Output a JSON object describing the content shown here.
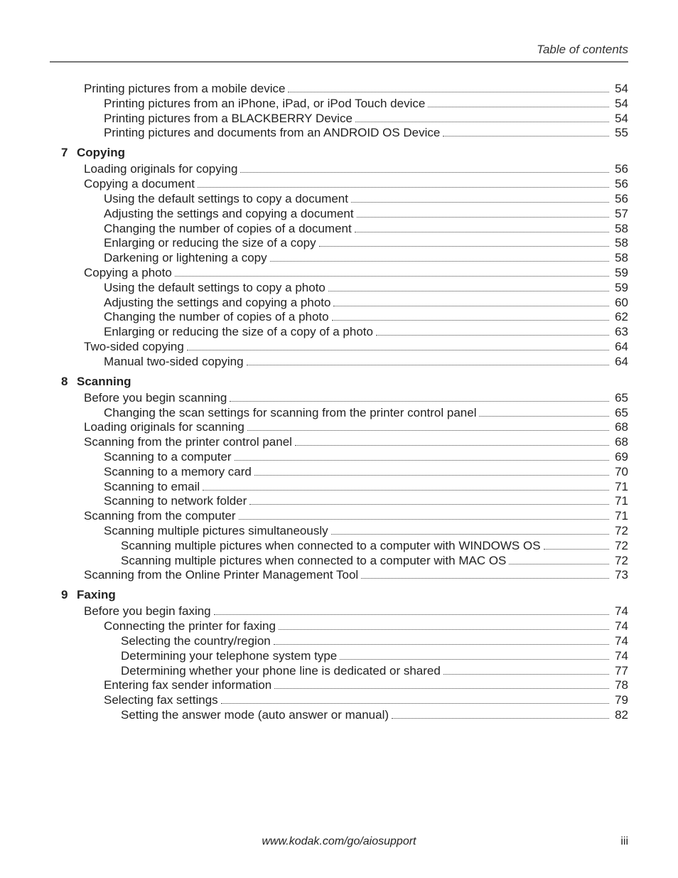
{
  "header": {
    "title": "Table of contents"
  },
  "entries": [
    {
      "indent": 0,
      "title": "Printing pictures from a mobile device",
      "page": "54"
    },
    {
      "indent": 1,
      "title": "Printing pictures from an iPhone, iPad, or iPod Touch device",
      "page": "54"
    },
    {
      "indent": 1,
      "title": "Printing pictures from a BLACKBERRY Device",
      "page": "54"
    },
    {
      "indent": 1,
      "title": "Printing pictures and documents from an ANDROID OS Device",
      "page": "55"
    },
    {
      "heading": true,
      "num": "7",
      "title": "Copying"
    },
    {
      "indent": 0,
      "title": "Loading originals for copying",
      "page": "56"
    },
    {
      "indent": 0,
      "title": "Copying a document",
      "page": "56"
    },
    {
      "indent": 1,
      "title": "Using the default settings to copy a document",
      "page": "56"
    },
    {
      "indent": 1,
      "title": "Adjusting the settings and copying a document",
      "page": "57"
    },
    {
      "indent": 1,
      "title": "Changing the number of copies of a document",
      "page": "58"
    },
    {
      "indent": 1,
      "title": "Enlarging or reducing the size of a copy",
      "page": "58"
    },
    {
      "indent": 1,
      "title": "Darkening or lightening a copy",
      "page": "58"
    },
    {
      "indent": 0,
      "title": "Copying a photo",
      "page": "59"
    },
    {
      "indent": 1,
      "title": "Using the default settings to copy a photo",
      "page": "59"
    },
    {
      "indent": 1,
      "title": "Adjusting the settings and copying a photo",
      "page": "60"
    },
    {
      "indent": 1,
      "title": "Changing the number of copies of a photo",
      "page": "62"
    },
    {
      "indent": 1,
      "title": "Enlarging or reducing the size of a copy of a photo",
      "page": "63"
    },
    {
      "indent": 0,
      "title": "Two-sided copying",
      "page": "64"
    },
    {
      "indent": 1,
      "title": "Manual two-sided copying",
      "page": "64"
    },
    {
      "heading": true,
      "num": "8",
      "title": "Scanning"
    },
    {
      "indent": 0,
      "title": "Before you begin scanning",
      "page": "65"
    },
    {
      "indent": 1,
      "title": "Changing the scan settings for scanning from the printer control panel",
      "page": "65"
    },
    {
      "indent": 0,
      "title": "Loading originals for scanning",
      "page": "68"
    },
    {
      "indent": 0,
      "title": "Scanning from the printer control panel",
      "page": "68"
    },
    {
      "indent": 1,
      "title": "Scanning to a computer",
      "page": "69"
    },
    {
      "indent": 1,
      "title": "Scanning to a memory card",
      "page": "70"
    },
    {
      "indent": 1,
      "title": "Scanning to email",
      "page": "71"
    },
    {
      "indent": 1,
      "title": "Scanning to network folder",
      "page": "71"
    },
    {
      "indent": 0,
      "title": "Scanning from the computer",
      "page": "71"
    },
    {
      "indent": 1,
      "title": "Scanning multiple pictures simultaneously",
      "page": "72"
    },
    {
      "indent": 2,
      "title": "Scanning multiple pictures when connected to a computer with WINDOWS OS",
      "page": "72"
    },
    {
      "indent": 2,
      "title": "Scanning multiple pictures when connected to a computer with MAC OS",
      "page": "72"
    },
    {
      "indent": 0,
      "title": "Scanning from the Online Printer Management Tool",
      "page": "73"
    },
    {
      "heading": true,
      "num": "9",
      "title": "Faxing"
    },
    {
      "indent": 0,
      "title": "Before you begin faxing",
      "page": "74"
    },
    {
      "indent": 1,
      "title": "Connecting the printer for faxing",
      "page": "74"
    },
    {
      "indent": 2,
      "title": "Selecting the country/region",
      "page": "74"
    },
    {
      "indent": 2,
      "title": "Determining your telephone system type",
      "page": "74"
    },
    {
      "indent": 2,
      "title": "Determining whether your phone line is dedicated or shared",
      "page": "77"
    },
    {
      "indent": 1,
      "title": "Entering fax sender information",
      "page": "78"
    },
    {
      "indent": 1,
      "title": "Selecting fax settings",
      "page": "79"
    },
    {
      "indent": 2,
      "title": "Setting the answer mode (auto answer or manual)",
      "page": "82"
    }
  ],
  "footer": {
    "url": "www.kodak.com/go/aiosupport",
    "pageNumber": "iii"
  }
}
